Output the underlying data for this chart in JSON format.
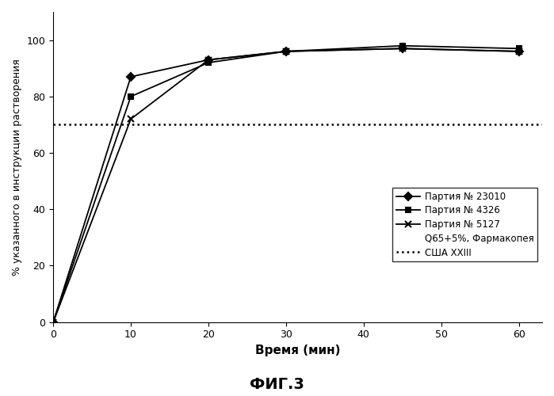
{
  "x": [
    0,
    10,
    20,
    30,
    45,
    60
  ],
  "series": [
    {
      "label": "Партия № 23010",
      "values": [
        0,
        87,
        93,
        96,
        97,
        96
      ],
      "marker": "D",
      "color": "#000000",
      "markersize": 5,
      "linewidth": 1.3
    },
    {
      "label": "Партия № 4326",
      "values": [
        0,
        80,
        92,
        96,
        98,
        97
      ],
      "marker": "s",
      "color": "#000000",
      "markersize": 5,
      "linewidth": 1.3
    },
    {
      "label": "Партия № 5127",
      "values": [
        0,
        72,
        93,
        96,
        97,
        96
      ],
      "marker": "x",
      "color": "#000000",
      "markersize": 6,
      "linewidth": 1.3
    }
  ],
  "reference_line": {
    "y": 70,
    "color": "#000000",
    "linestyle": "dotted",
    "linewidth": 1.8,
    "label_line": "США XXIII",
    "label_text": "Q65+5%, Фармакопея"
  },
  "xlabel": "Время (мин)",
  "ylabel": "% указанного в инструкции растворения",
  "title": "ФИГ.3",
  "xlim": [
    0,
    63
  ],
  "ylim": [
    0,
    110
  ],
  "xticks": [
    0,
    10,
    20,
    30,
    40,
    50,
    60
  ],
  "yticks": [
    0,
    20,
    40,
    60,
    80,
    100
  ],
  "background_color": "#ffffff"
}
